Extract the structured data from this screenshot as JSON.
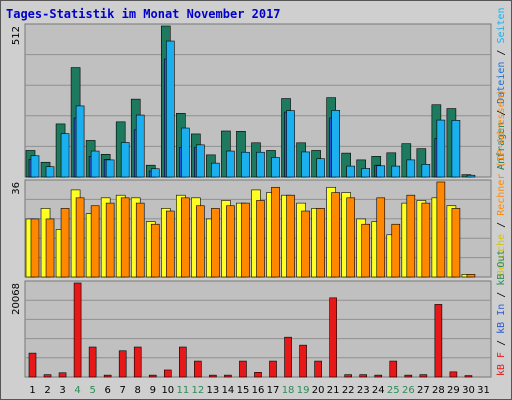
{
  "title": "Tages-Statistik im Monat November 2017",
  "colors": {
    "anfragen": "#1e7a5e",
    "dateien": "#1ab0f0",
    "rechner": "#ff8800",
    "besuche": "#ffff22",
    "kb_in": "#2a5bd7",
    "kb_f": "#e81818",
    "plot_bg": "#c0c0c0",
    "grid": "#909090",
    "weekend_label": "#2e8b57",
    "weekday_label": "#000000"
  },
  "legend": {
    "top": [
      {
        "text": "Anfragen",
        "color": "#1e7a5e"
      },
      {
        "text": " / ",
        "color": "#000000"
      },
      {
        "text": "Dateien",
        "color": "#1a6fcf"
      },
      {
        "text": " / ",
        "color": "#000000"
      },
      {
        "text": "Seiten",
        "color": "#1ab0f0"
      }
    ],
    "middle": [
      {
        "text": "Besuche",
        "color": "#d4c400"
      },
      {
        "text": " / ",
        "color": "#000000"
      },
      {
        "text": "Rechner (IP-Adressen)",
        "color": "#ff8800"
      }
    ],
    "bottom": [
      {
        "text": "kB F",
        "color": "#e81818"
      },
      {
        "text": " / ",
        "color": "#000000"
      },
      {
        "text": "kB In",
        "color": "#2a5bd7"
      },
      {
        "text": " / ",
        "color": "#000000"
      },
      {
        "text": "kB Out",
        "color": "#2e8b57"
      }
    ]
  },
  "chart_data": [
    {
      "type": "bar",
      "panel": "top",
      "ymax_label": "512",
      "ylim": [
        0,
        512
      ],
      "categories": [
        "1",
        "2",
        "3",
        "4",
        "5",
        "6",
        "7",
        "8",
        "9",
        "10",
        "11",
        "12",
        "13",
        "14",
        "15",
        "16",
        "17",
        "18",
        "19",
        "20",
        "21",
        "22",
        "23",
        "24",
        "25",
        "26",
        "27",
        "28",
        "29",
        "30",
        "31"
      ],
      "series": [
        {
          "name": "Anfragen",
          "values": [
            90,
            50,
            180,
            371,
            124,
            77,
            187,
            264,
            40,
            512,
            216,
            146,
            75,
            156,
            155,
            116,
            90,
            266,
            116,
            90,
            269,
            81,
            58,
            70,
            82,
            113,
            96,
            245,
            232,
            8,
            0
          ]
        },
        {
          "name": "Dateien",
          "values": [
            60,
            0,
            0,
            200,
            70,
            60,
            0,
            160,
            20,
            400,
            100,
            100,
            0,
            0,
            0,
            0,
            0,
            220,
            0,
            0,
            200,
            0,
            0,
            40,
            0,
            0,
            0,
            130,
            0,
            0,
            0
          ]
        },
        {
          "name": "Seiten",
          "values": [
            72,
            35,
            147,
            241,
            88,
            58,
            117,
            210,
            28,
            461,
            166,
            109,
            47,
            88,
            84,
            84,
            66,
            225,
            85,
            62,
            226,
            37,
            29,
            38,
            37,
            58,
            43,
            193,
            192,
            6,
            0
          ]
        }
      ]
    },
    {
      "type": "bar",
      "panel": "middle",
      "ymax_label": "36",
      "ylim": [
        0,
        36
      ],
      "categories": [
        "1",
        "2",
        "3",
        "4",
        "5",
        "6",
        "7",
        "8",
        "9",
        "10",
        "11",
        "12",
        "13",
        "14",
        "15",
        "16",
        "17",
        "18",
        "19",
        "20",
        "21",
        "22",
        "23",
        "24",
        "25",
        "26",
        "27",
        "28",
        "29",
        "30",
        "31"
      ],
      "series": [
        {
          "name": "Besuche",
          "values": [
            22,
            26,
            18,
            33,
            24,
            30,
            31,
            30,
            21,
            26,
            31,
            30,
            22,
            29,
            28,
            33,
            32,
            31,
            28,
            26,
            34,
            32,
            22,
            21,
            16,
            28,
            29,
            30,
            27,
            1,
            0
          ]
        },
        {
          "name": "Rechner",
          "values": [
            22,
            22,
            26,
            30,
            27,
            28,
            30,
            28,
            20,
            25,
            30,
            27,
            26,
            27,
            28,
            29,
            34,
            31,
            25,
            26,
            32,
            30,
            20,
            30,
            20,
            31,
            28,
            36,
            26,
            1,
            0
          ]
        }
      ]
    },
    {
      "type": "bar",
      "panel": "bottom",
      "ymax_label": "20068",
      "ylim": [
        0,
        20068
      ],
      "categories": [
        "1",
        "2",
        "3",
        "4",
        "5",
        "6",
        "7",
        "8",
        "9",
        "10",
        "11",
        "12",
        "13",
        "14",
        "15",
        "16",
        "17",
        "18",
        "19",
        "20",
        "21",
        "22",
        "23",
        "24",
        "25",
        "26",
        "27",
        "28",
        "29",
        "30",
        "31"
      ],
      "series": [
        {
          "name": "kB F",
          "values": [
            5100,
            500,
            900,
            20068,
            6400,
            400,
            5600,
            6400,
            400,
            1500,
            6400,
            3400,
            400,
            400,
            3400,
            1000,
            3400,
            8500,
            6800,
            3400,
            16900,
            500,
            500,
            400,
            3400,
            400,
            500,
            15500,
            1100,
            300,
            0
          ]
        }
      ]
    }
  ],
  "x_labels": [
    {
      "text": "1",
      "weekend": false
    },
    {
      "text": "2",
      "weekend": false
    },
    {
      "text": "3",
      "weekend": false
    },
    {
      "text": "4",
      "weekend": true
    },
    {
      "text": "5",
      "weekend": true
    },
    {
      "text": "6",
      "weekend": false
    },
    {
      "text": "7",
      "weekend": false
    },
    {
      "text": "8",
      "weekend": false
    },
    {
      "text": "9",
      "weekend": false
    },
    {
      "text": "10",
      "weekend": false
    },
    {
      "text": "11",
      "weekend": true
    },
    {
      "text": "12",
      "weekend": true
    },
    {
      "text": "13",
      "weekend": false
    },
    {
      "text": "14",
      "weekend": false
    },
    {
      "text": "15",
      "weekend": false
    },
    {
      "text": "16",
      "weekend": false
    },
    {
      "text": "17",
      "weekend": false
    },
    {
      "text": "18",
      "weekend": true
    },
    {
      "text": "19",
      "weekend": true
    },
    {
      "text": "20",
      "weekend": false
    },
    {
      "text": "21",
      "weekend": false
    },
    {
      "text": "22",
      "weekend": false
    },
    {
      "text": "23",
      "weekend": false
    },
    {
      "text": "24",
      "weekend": false
    },
    {
      "text": "25",
      "weekend": true
    },
    {
      "text": "26",
      "weekend": true
    },
    {
      "text": "27",
      "weekend": false
    },
    {
      "text": "28",
      "weekend": false
    },
    {
      "text": "29",
      "weekend": false
    },
    {
      "text": "30",
      "weekend": false
    },
    {
      "text": "31",
      "weekend": false
    }
  ]
}
